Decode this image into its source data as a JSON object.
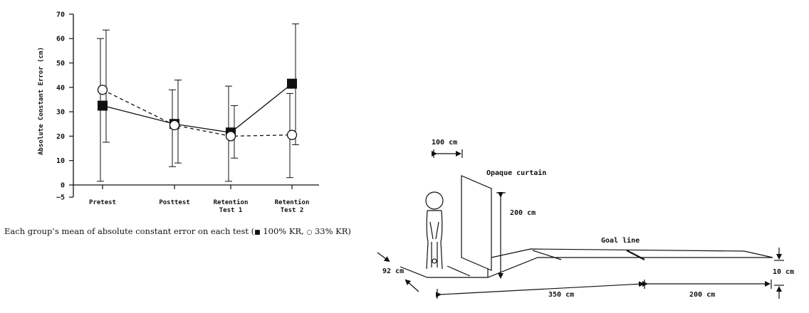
{
  "chart_data": {
    "type": "line",
    "ylabel": "Absolute Constant Error (cm)",
    "ylim": [
      -5,
      70
    ],
    "yticks": [
      -5,
      0,
      10,
      20,
      30,
      40,
      50,
      60,
      70
    ],
    "categories": [
      "Pretest",
      "Posttest",
      "Retention Test 1",
      "Retention Test 2"
    ],
    "category_lines": [
      [
        "Pretest"
      ],
      [
        "Posttest"
      ],
      [
        "Retention",
        "Test 1"
      ],
      [
        "Retention",
        "Test 2"
      ]
    ],
    "grid": false,
    "series": [
      {
        "name": "100% KR",
        "marker": "filled-square",
        "line": "solid",
        "values": [
          32.5,
          25,
          21.5,
          41.5
        ],
        "error_low": [
          17.5,
          9,
          11,
          16.5
        ],
        "error_high": [
          63.5,
          43,
          32.5,
          66
        ]
      },
      {
        "name": "33% KR",
        "marker": "open-circle",
        "line": "dashed",
        "values": [
          39,
          24.5,
          20,
          20.5
        ],
        "error_low": [
          1.5,
          7.5,
          1.5,
          3
        ],
        "error_high": [
          60,
          39,
          40.5,
          37.5
        ]
      }
    ]
  },
  "caption": {
    "text": "Each group’s mean of absolute constant error on each test (",
    "sep": ",",
    "end": ")",
    "filled_marker": "■",
    "open_marker": "○",
    "label_100": "100% KR",
    "label_33": "33% KR"
  },
  "diagram": {
    "width_label": "100 cm",
    "curtain_label": "Opaque curtain",
    "height_label": "200 cm",
    "goal_label": "Goal line",
    "floor_width_label": "92 cm",
    "step_label": "10 cm",
    "distance1_label": "350 cm",
    "distance2_label": "200 cm"
  }
}
